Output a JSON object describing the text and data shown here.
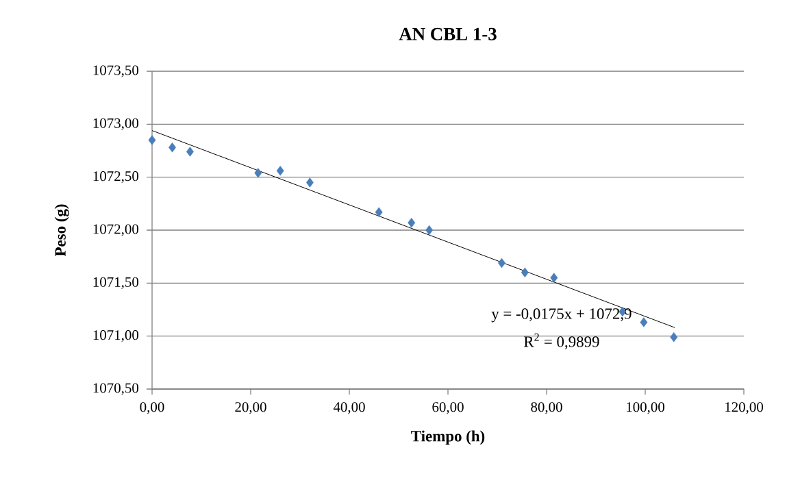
{
  "chart_data": {
    "type": "scatter",
    "title": "AN CBL 1-3",
    "xlabel": "Tiempo (h)",
    "ylabel": "Peso (g)",
    "marker": "diamond",
    "grid": "y",
    "xlim": [
      0,
      120
    ],
    "ylim": [
      1070.5,
      1073.5
    ],
    "xticks": [
      {
        "value": 0,
        "label": "0,00"
      },
      {
        "value": 20,
        "label": "20,00"
      },
      {
        "value": 40,
        "label": "40,00"
      },
      {
        "value": 60,
        "label": "60,00"
      },
      {
        "value": 80,
        "label": "80,00"
      },
      {
        "value": 100,
        "label": "100,00"
      },
      {
        "value": 120,
        "label": "120,00"
      }
    ],
    "yticks": [
      {
        "value": 1070.5,
        "label": "1070,50"
      },
      {
        "value": 1071,
        "label": "1071,00"
      },
      {
        "value": 1071.5,
        "label": "1071,50"
      },
      {
        "value": 1072,
        "label": "1072,00"
      },
      {
        "value": 1072.5,
        "label": "1072,50"
      },
      {
        "value": 1073,
        "label": "1073,00"
      },
      {
        "value": 1073.5,
        "label": "1073,50"
      }
    ],
    "series": [
      {
        "color": "#4a7ebb",
        "x": [
          0,
          4.1,
          7.7,
          21.5,
          26,
          32,
          46,
          52.6,
          56.2,
          70.9,
          75.6,
          81.5,
          95.4,
          99.7,
          105.8
        ],
        "values": [
          1072.85,
          1072.78,
          1072.74,
          1072.54,
          1072.56,
          1072.45,
          1072.17,
          1072.07,
          1072.0,
          1071.69,
          1071.6,
          1071.55,
          1071.23,
          1071.13,
          1070.99
        ]
      },
      {
        "type": "line",
        "color": "#000000",
        "marker": "none",
        "line_style": "solid",
        "x": [
          0,
          106
        ],
        "values": [
          1072.94,
          1071.08
        ]
      }
    ],
    "annotations": [
      "y = -0,0175x + 1072,9",
      "R$^{2}$ = 0,9899"
    ]
  }
}
